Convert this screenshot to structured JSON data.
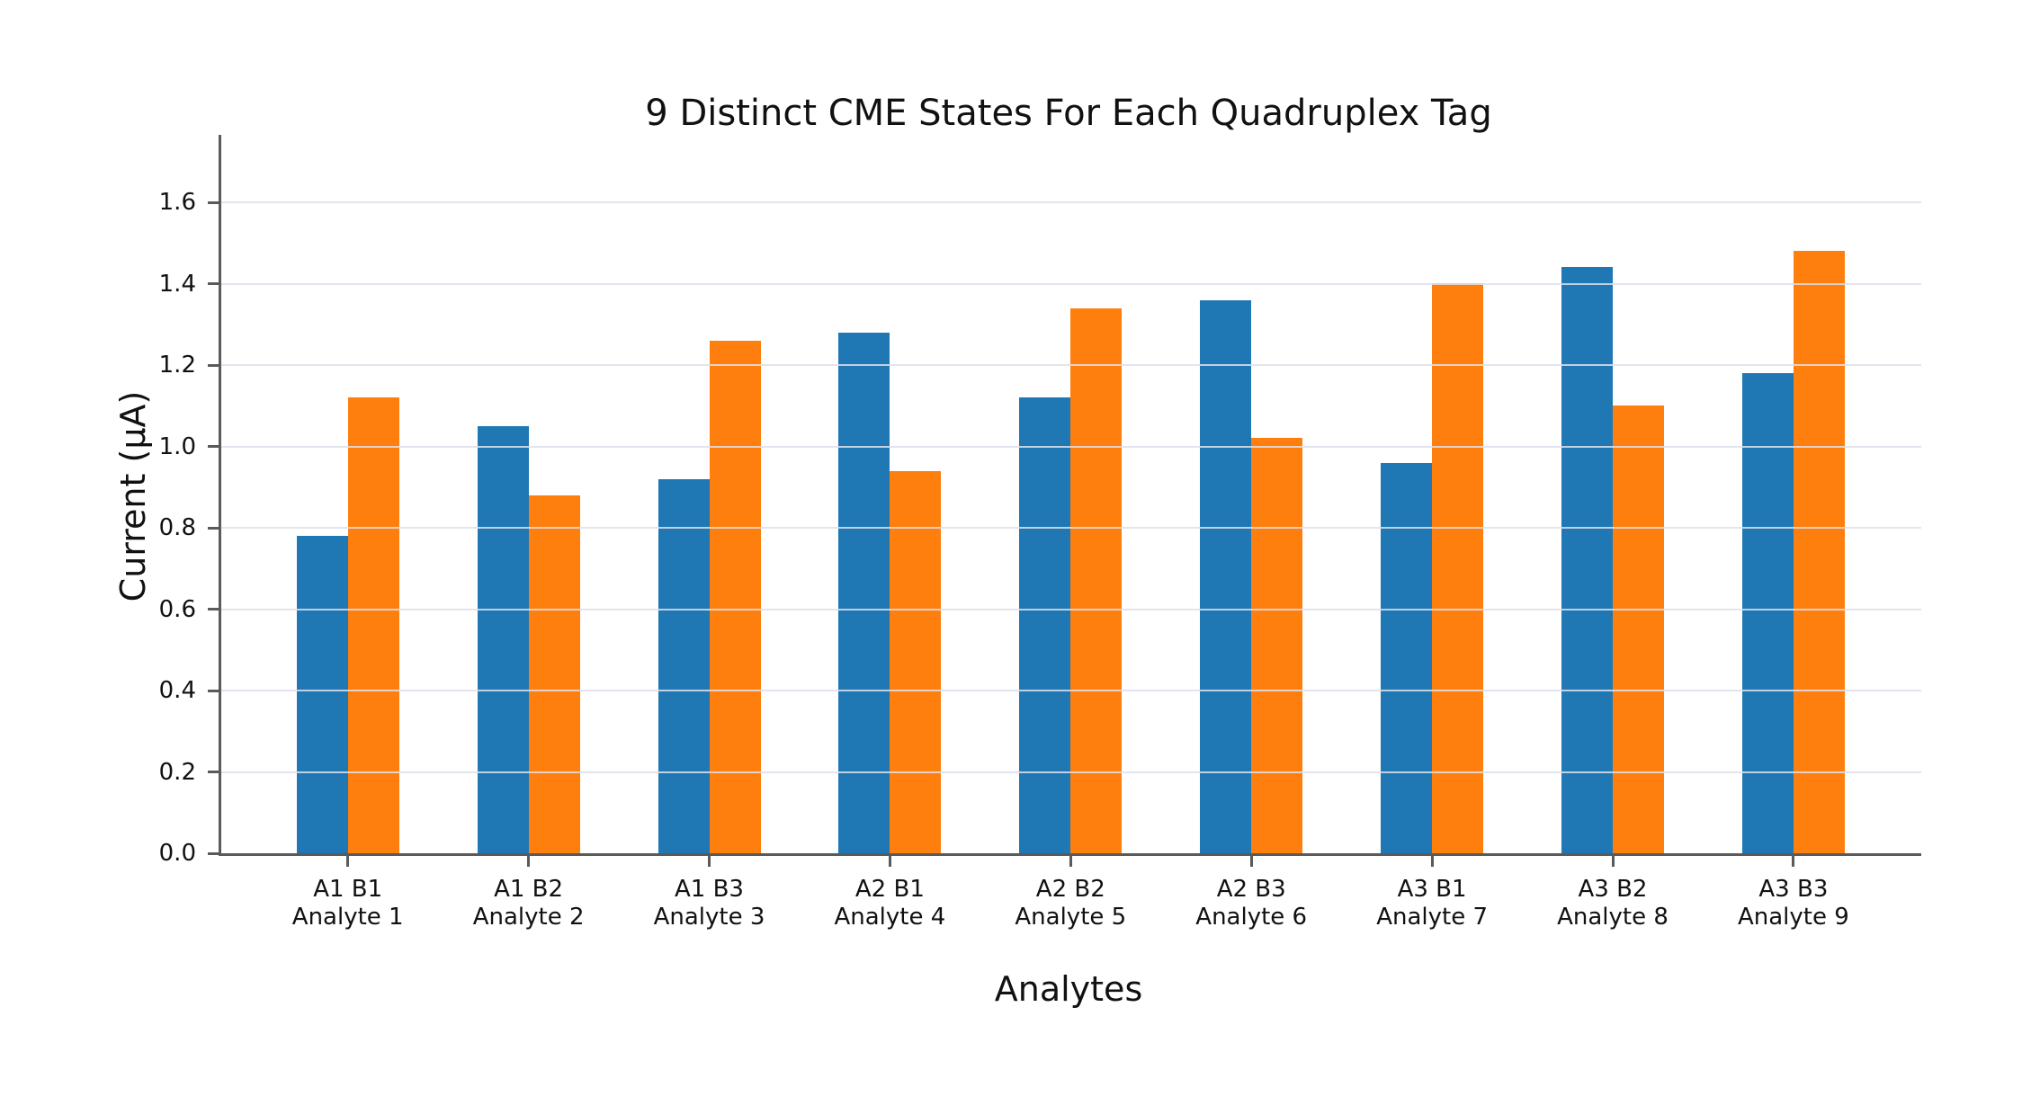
{
  "chart_data": {
    "type": "bar",
    "title": "9 Distinct CME States For Each Quadruplex Tag",
    "xlabel": "Analytes",
    "ylabel": "Current (µA)",
    "categories": [
      {
        "tag": "A1 B1",
        "analyte": "Analyte 1"
      },
      {
        "tag": "A1 B2",
        "analyte": "Analyte 2"
      },
      {
        "tag": "A1 B3",
        "analyte": "Analyte 3"
      },
      {
        "tag": "A2 B1",
        "analyte": "Analyte 4"
      },
      {
        "tag": "A2 B2",
        "analyte": "Analyte 5"
      },
      {
        "tag": "A2 B3",
        "analyte": "Analyte 6"
      },
      {
        "tag": "A3 B1",
        "analyte": "Analyte 7"
      },
      {
        "tag": "A3 B2",
        "analyte": "Analyte 8"
      },
      {
        "tag": "A3 B3",
        "analyte": "Analyte 9"
      }
    ],
    "series": [
      {
        "name": "blue",
        "color": "#1f77b4",
        "values": [
          0.78,
          1.05,
          0.92,
          1.28,
          1.12,
          1.36,
          0.96,
          1.44,
          1.18
        ]
      },
      {
        "name": "orange",
        "color": "#ff7f0e",
        "values": [
          1.12,
          0.88,
          1.26,
          0.94,
          1.34,
          1.02,
          1.4,
          1.1,
          1.48
        ]
      }
    ],
    "yticks": [
      "0.0",
      "0.2",
      "0.4",
      "0.6",
      "0.8",
      "1.0",
      "1.2",
      "1.4",
      "1.6"
    ],
    "ylim": [
      0,
      1.766
    ],
    "grid": true,
    "grid_color": "#dfdfeb",
    "axis_color": "#5a5a5a",
    "text_color": "#111111",
    "background_color": "#ffffff",
    "legend": "none"
  }
}
